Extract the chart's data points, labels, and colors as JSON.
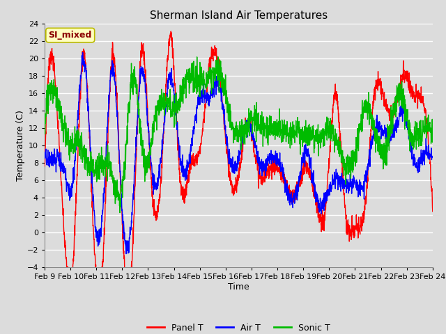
{
  "title": "Sherman Island Air Temperatures",
  "xlabel": "Time",
  "ylabel": "Temperature (C)",
  "ylim": [
    -4,
    24
  ],
  "yticks": [
    -4,
    -2,
    0,
    2,
    4,
    6,
    8,
    10,
    12,
    14,
    16,
    18,
    20,
    22,
    24
  ],
  "xtick_labels": [
    "Feb 9",
    "Feb 10",
    "Feb 11",
    "Feb 12",
    "Feb 13",
    "Feb 14",
    "Feb 15",
    "Feb 16",
    "Feb 17",
    "Feb 18",
    "Feb 19",
    "Feb 20",
    "Feb 21",
    "Feb 22",
    "Feb 23",
    "Feb 24"
  ],
  "annotation_text": "SI_mixed",
  "annotation_color": "#8B0000",
  "annotation_bg": "#FFFFC0",
  "panel_t_color": "#FF0000",
  "air_t_color": "#0000FF",
  "sonic_t_color": "#00BB00",
  "legend_labels": [
    "Panel T",
    "Air T",
    "Sonic T"
  ],
  "background_color": "#DCDCDC",
  "plot_bg_color": "#DCDCDC",
  "grid_color": "#FFFFFF",
  "title_fontsize": 11,
  "axis_label_fontsize": 9,
  "tick_fontsize": 8
}
